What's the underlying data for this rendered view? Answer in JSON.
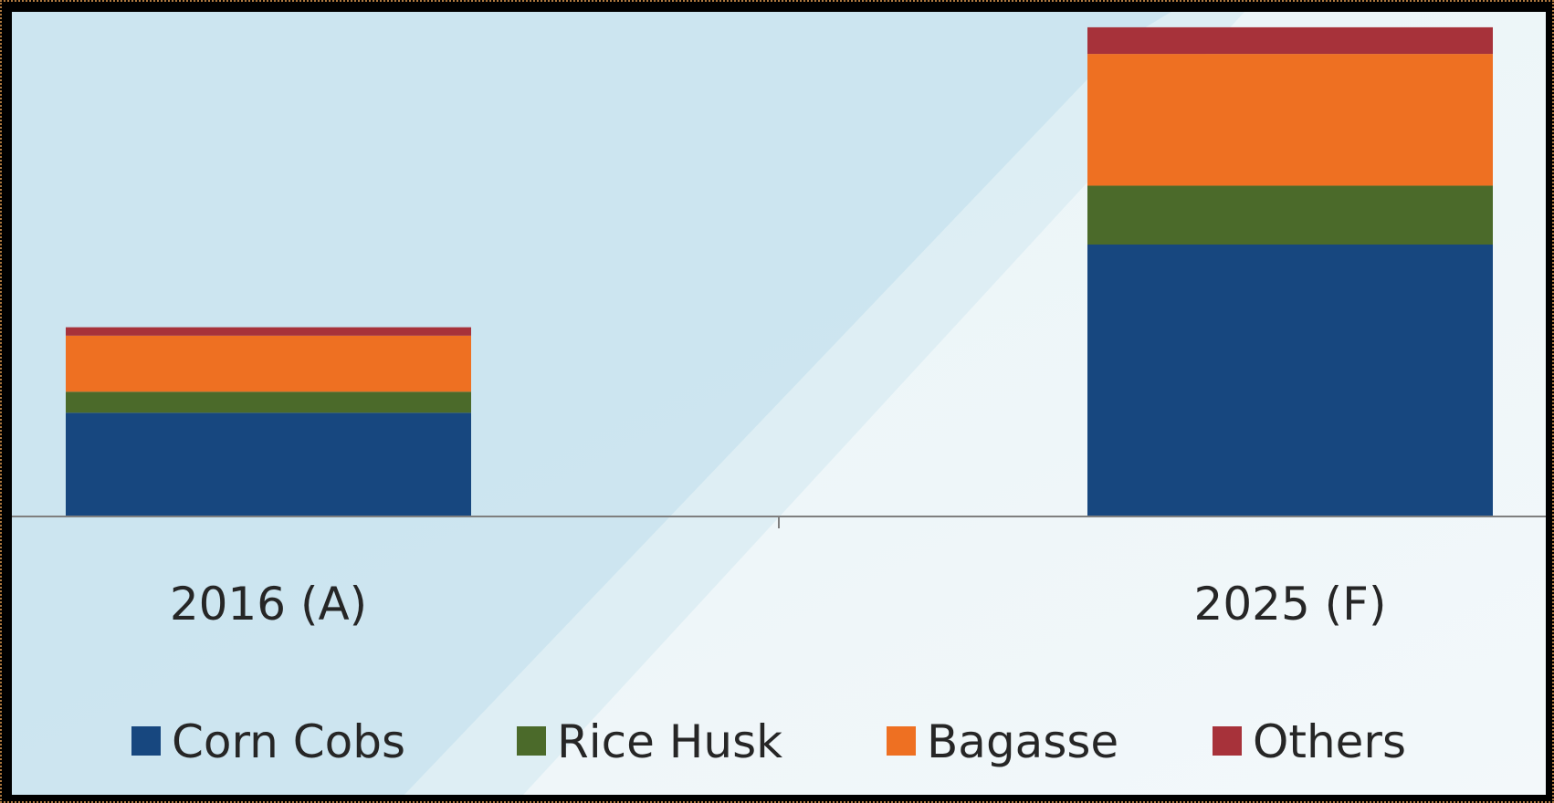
{
  "chart_data": {
    "type": "bar",
    "stacked": true,
    "categories": [
      "2016 (A)",
      "2025 (F)"
    ],
    "series": [
      {
        "name": "Corn Cobs",
        "color": "#17477f",
        "values": [
          37,
          97
        ]
      },
      {
        "name": "Rice Husk",
        "color": "#4b6a2a",
        "values": [
          7.5,
          21
        ]
      },
      {
        "name": "Bagasse",
        "color": "#ee7022",
        "values": [
          20,
          47
        ]
      },
      {
        "name": "Others",
        "color": "#a7323a",
        "values": [
          3,
          9.5
        ]
      }
    ],
    "title": "",
    "xlabel": "",
    "ylabel": "",
    "ylim": [
      0,
      180
    ],
    "grid": false,
    "legend_position": "bottom",
    "y_axis_visible": false
  },
  "colors": {
    "frame_border": "#b07a40",
    "background_light": "#eef6f8",
    "background_band": "#c9e3ee",
    "axis_line": "#7f7f7f",
    "text": "#262626"
  }
}
